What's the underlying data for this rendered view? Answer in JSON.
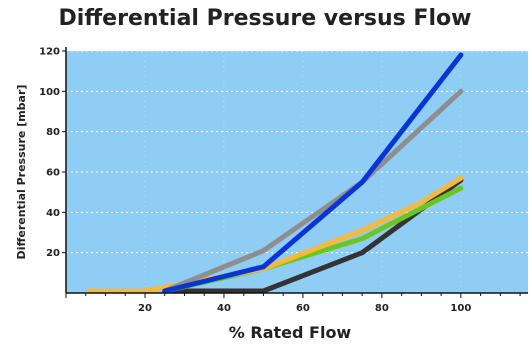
{
  "chart_data": {
    "type": "line",
    "title": "Differential Pressure versus Flow",
    "xlabel": "% Rated Flow",
    "ylabel": "Differential Pressure [mbar]",
    "xlim": [
      0,
      117
    ],
    "ylim": [
      0,
      120
    ],
    "x_ticks": [
      20,
      40,
      60,
      80,
      100
    ],
    "y_ticks": [
      20,
      40,
      60,
      80,
      100,
      120
    ],
    "grid": true,
    "background_color": "#8fcdf5",
    "series": [
      {
        "color": "#333333",
        "points": [
          [
            25,
            1
          ],
          [
            50,
            1
          ],
          [
            75,
            20
          ],
          [
            100,
            56
          ]
        ]
      },
      {
        "color": "#6cc520",
        "points": [
          [
            25,
            1
          ],
          [
            50,
            12
          ],
          [
            75,
            27
          ],
          [
            100,
            52
          ]
        ]
      },
      {
        "color": "#f6b93d",
        "points": [
          [
            6,
            1
          ],
          [
            20,
            1
          ],
          [
            50,
            12
          ],
          [
            75,
            31
          ],
          [
            90,
            45
          ],
          [
            100,
            57
          ]
        ]
      },
      {
        "color": "#8e8e8e",
        "points": [
          [
            25,
            1
          ],
          [
            50,
            21
          ],
          [
            75,
            55
          ],
          [
            100,
            100
          ]
        ]
      },
      {
        "color": "#0a35d6",
        "points": [
          [
            25,
            1
          ],
          [
            50,
            13
          ],
          [
            75,
            55
          ],
          [
            100,
            118
          ]
        ]
      }
    ]
  }
}
